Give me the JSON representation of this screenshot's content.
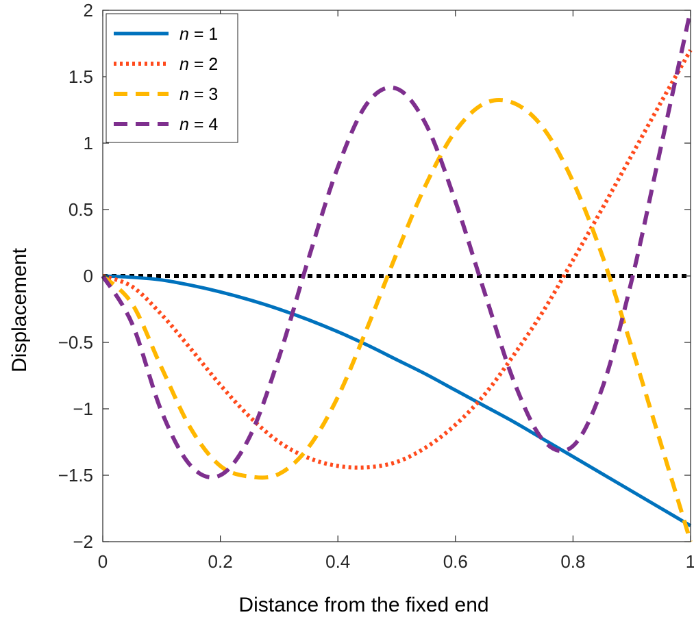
{
  "chart_data": {
    "type": "line",
    "xlabel": "Distance from the fixed end",
    "ylabel": "Displacement",
    "xlim": [
      0,
      1
    ],
    "ylim": [
      -2,
      2
    ],
    "x_ticks": [
      0,
      0.2,
      0.4,
      0.6,
      0.8,
      1
    ],
    "x_tick_labels": [
      "0",
      "0.2",
      "0.4",
      "0.6",
      "0.8",
      "1"
    ],
    "y_ticks": [
      -2,
      -1.5,
      -1,
      -0.5,
      0,
      0.5,
      1,
      1.5,
      2
    ],
    "y_tick_labels": [
      "−2",
      "−1.5",
      "−1",
      "−0.5",
      "0",
      "0.5",
      "1",
      "1.5",
      "2"
    ],
    "grid": false,
    "legend_position": "top-left",
    "zero_line": {
      "y": 0,
      "color": "#000000",
      "style": "dotted"
    },
    "series": [
      {
        "name_prefix": "n",
        "name_suffix": " = 1",
        "color": "#0072BD",
        "style": "solid",
        "x": [
          0,
          0.05,
          0.1,
          0.15,
          0.2,
          0.25,
          0.3,
          0.35,
          0.4,
          0.45,
          0.5,
          0.55,
          0.6,
          0.65,
          0.7,
          0.75,
          0.8,
          0.85,
          0.9,
          0.95,
          1
        ],
        "y": [
          0,
          -0.01,
          -0.03,
          -0.07,
          -0.12,
          -0.18,
          -0.25,
          -0.33,
          -0.42,
          -0.52,
          -0.63,
          -0.74,
          -0.86,
          -0.98,
          -1.1,
          -1.23,
          -1.36,
          -1.49,
          -1.62,
          -1.75,
          -1.88
        ]
      },
      {
        "name_prefix": "n",
        "name_suffix": " = 2",
        "color": "#FF4A1C",
        "style": "dotted",
        "x": [
          0,
          0.05,
          0.1,
          0.15,
          0.2,
          0.25,
          0.3,
          0.35,
          0.4,
          0.45,
          0.5,
          0.55,
          0.6,
          0.65,
          0.7,
          0.75,
          0.8,
          0.85,
          0.9,
          0.95,
          1
        ],
        "y": [
          0,
          -0.08,
          -0.29,
          -0.55,
          -0.82,
          -1.06,
          -1.25,
          -1.37,
          -1.43,
          -1.44,
          -1.4,
          -1.29,
          -1.12,
          -0.89,
          -0.59,
          -0.26,
          0.12,
          0.51,
          0.91,
          1.31,
          1.7
        ]
      },
      {
        "name_prefix": "n",
        "name_suffix": " = 3",
        "color": "#FFB700",
        "style": "dashed",
        "x": [
          0,
          0.05,
          0.1,
          0.15,
          0.2,
          0.25,
          0.3,
          0.35,
          0.4,
          0.45,
          0.5,
          0.55,
          0.6,
          0.65,
          0.7,
          0.75,
          0.8,
          0.85,
          0.9,
          0.95,
          1
        ],
        "y": [
          0,
          -0.21,
          -0.69,
          -1.15,
          -1.43,
          -1.51,
          -1.49,
          -1.29,
          -0.91,
          -0.39,
          0.17,
          0.69,
          1.09,
          1.3,
          1.3,
          1.11,
          0.71,
          0.15,
          -0.54,
          -1.27,
          -2
        ]
      },
      {
        "name_prefix": "n",
        "name_suffix": " = 4",
        "color": "#7E2F8E",
        "style": "dashed",
        "x": [
          0,
          0.05,
          0.1,
          0.15,
          0.2,
          0.25,
          0.3,
          0.35,
          0.4,
          0.45,
          0.5,
          0.55,
          0.6,
          0.65,
          0.7,
          0.75,
          0.8,
          0.85,
          0.9,
          0.95,
          1
        ],
        "y": [
          0,
          -0.36,
          -1.02,
          -1.43,
          -1.5,
          -1.21,
          -0.61,
          0.13,
          0.82,
          1.3,
          1.41,
          1.14,
          0.56,
          -0.13,
          -0.8,
          -1.24,
          -1.28,
          -0.84,
          -0.03,
          0.98,
          2
        ]
      }
    ]
  }
}
